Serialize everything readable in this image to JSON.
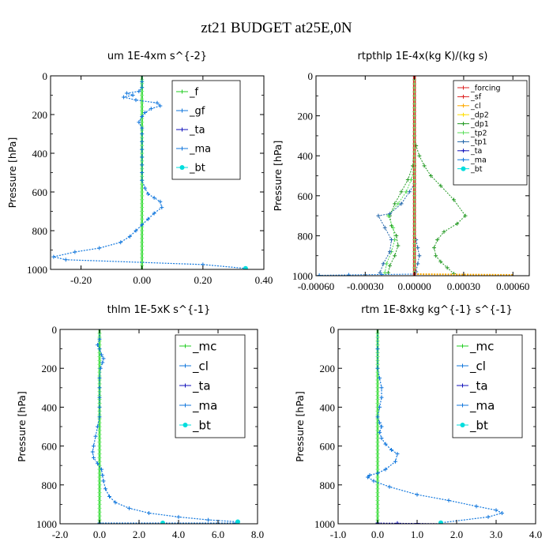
{
  "figure": {
    "title": "zt21  BUDGET at25E,0N",
    "colors": {
      "green": "#22cc22",
      "blue": "#1177dd",
      "navy": "#1111bb",
      "cyan": "#00dddd",
      "red": "#dd2222",
      "orange": "#ffaa00",
      "yellow": "#ffdd00",
      "dark_green": "#229922",
      "light_green": "#55dd55",
      "deep_blue": "#2266aa"
    }
  },
  "chart_data": [
    {
      "type": "line",
      "title": "um   1E-4xm s^{-2}",
      "xlabel": "",
      "ylabel": "Pressure [hPa]",
      "xlim": [
        -0.3,
        0.4
      ],
      "ylim": [
        1000,
        0
      ],
      "x_ticks": [
        -0.2,
        0.0,
        0.2,
        0.4
      ],
      "x_tick_labels": [
        "-0.20",
        "0.00",
        "0.20",
        "0.40"
      ],
      "y_ticks": [
        0,
        200,
        400,
        600,
        800,
        1000
      ],
      "y_tick_labels": [
        "0",
        "200",
        "400",
        "600",
        "800",
        "1000"
      ],
      "legend": {
        "position": "top-right",
        "font_size": 13,
        "entries": [
          {
            "label": "_f",
            "color": "green"
          },
          {
            "label": "_gf",
            "color": "blue"
          },
          {
            "label": "_ta",
            "color": "navy"
          },
          {
            "label": "_ma",
            "color": "blue"
          },
          {
            "label": "_bt",
            "color": "cyan"
          }
        ]
      },
      "series": [
        {
          "color": "green",
          "marker": "plus",
          "zero": true,
          "lw": 2.5
        },
        {
          "color": "blue",
          "marker": "plus",
          "lw": 1.2,
          "x": [
            0.0,
            0.0,
            0.0,
            -0.01,
            -0.05,
            -0.03,
            -0.06,
            -0.02,
            0.05,
            0.06,
            0.03,
            0.01,
            0.0,
            -0.01,
            0.0,
            0.0,
            0.0,
            0.0,
            0.0,
            0.0,
            0.0,
            0.0,
            0.01,
            0.02,
            0.04,
            0.06,
            0.065,
            0.04,
            0.02,
            0.0,
            -0.02,
            -0.04,
            -0.07,
            -0.14,
            -0.22,
            -0.29,
            -0.25,
            0.2,
            0.34
          ],
          "y": [
            0,
            30,
            60,
            80,
            90,
            100,
            110,
            125,
            140,
            155,
            170,
            190,
            210,
            240,
            270,
            300,
            340,
            380,
            420,
            460,
            500,
            540,
            580,
            610,
            630,
            650,
            680,
            710,
            740,
            770,
            800,
            830,
            860,
            890,
            910,
            935,
            950,
            975,
            995
          ]
        },
        {
          "color": "cyan",
          "marker": "dot",
          "lw": 0,
          "x": [
            0.34
          ],
          "y": [
            995
          ]
        }
      ]
    },
    {
      "type": "line",
      "title": "rtpthlp   1E-4x(kg K)/(kg s)",
      "xlabel": "",
      "ylabel": "Pressure [hPa]",
      "xlim": [
        -0.0006,
        0.0007
      ],
      "ylim": [
        1000,
        0
      ],
      "x_ticks": [
        -0.0006,
        -0.0003,
        0.0,
        0.0003,
        0.0006
      ],
      "x_tick_labels": [
        "-0.00060",
        "-0.00030",
        "0.00000",
        "0.00030",
        "0.00060"
      ],
      "y_ticks": [
        0,
        200,
        400,
        600,
        800,
        1000
      ],
      "y_tick_labels": [
        "0",
        "200",
        "400",
        "600",
        "800",
        "1000"
      ],
      "legend": {
        "position": "top-right",
        "font_size": 9.5,
        "entries": [
          {
            "label": "_forcing",
            "color": "red"
          },
          {
            "label": "_sf",
            "color": "red"
          },
          {
            "label": "_cl",
            "color": "orange"
          },
          {
            "label": "_dp2",
            "color": "yellow"
          },
          {
            "label": "_dp1",
            "color": "dark_green"
          },
          {
            "label": "_tp2",
            "color": "light_green"
          },
          {
            "label": "_tp1",
            "color": "deep_blue"
          },
          {
            "label": "_ta",
            "color": "navy"
          },
          {
            "label": "_ma",
            "color": "blue"
          },
          {
            "label": "_bt",
            "color": "cyan"
          }
        ]
      },
      "series": [
        {
          "color": "dark_green",
          "marker": "plus",
          "lw": 1,
          "x": [
            0.0,
            0.0,
            1e-05,
            3e-05,
            6e-05,
            0.0001,
            0.00016,
            0.00024,
            0.00031,
            0.00026,
            0.00018,
            0.00014,
            0.00012,
            0.00013,
            0.00016,
            0.0002,
            0.00024
          ],
          "y": [
            0,
            300,
            350,
            400,
            450,
            500,
            550,
            620,
            700,
            740,
            780,
            820,
            860,
            900,
            930,
            960,
            990
          ]
        },
        {
          "color": "dark_green",
          "marker": "plus",
          "lw": 1,
          "x": [
            0.0,
            -1e-05,
            -4e-05,
            -8e-05,
            -0.00012,
            -0.00015,
            -0.00014,
            -0.00011,
            -0.0001,
            -0.00012,
            -0.00015,
            -0.00016
          ],
          "y": [
            340,
            450,
            520,
            580,
            640,
            700,
            750,
            800,
            850,
            900,
            950,
            985
          ]
        },
        {
          "color": "light_green",
          "marker": "plus",
          "lw": 1,
          "x": [
            0.0,
            -2e-05,
            -5e-05,
            -0.0001,
            -0.00016,
            -0.00013,
            -0.00012,
            -0.00014,
            -0.00017,
            -0.00018
          ],
          "y": [
            450,
            520,
            580,
            640,
            700,
            760,
            820,
            880,
            940,
            985
          ]
        },
        {
          "color": "deep_blue",
          "marker": "plus",
          "lw": 1,
          "x": [
            0.0,
            -3e-05,
            -8e-05,
            -0.00015,
            -0.00022,
            -0.00018,
            -0.00014,
            -0.00015,
            -0.00019,
            -0.00021
          ],
          "y": [
            540,
            580,
            640,
            690,
            700,
            760,
            820,
            880,
            940,
            985
          ]
        },
        {
          "color": "deep_blue",
          "marker": "plus",
          "lw": 1,
          "x": [
            1e-05,
            2e-05,
            3e-05,
            2e-05,
            1e-05
          ],
          "y": [
            820,
            860,
            900,
            940,
            980
          ]
        },
        {
          "color": "orange",
          "marker": "none",
          "lw": 2,
          "x": [
            0.0,
            0.00028,
            0.0006
          ],
          "y": [
            992,
            994,
            996
          ]
        },
        {
          "color": "blue",
          "marker": "plus",
          "lw": 1,
          "x": [
            0.0,
            -0.0002,
            -0.0004,
            -0.00058
          ],
          "y": [
            992,
            994,
            996,
            998
          ]
        },
        {
          "color": "red",
          "marker": "plus",
          "zero": true,
          "lw": 3.5
        }
      ]
    },
    {
      "type": "line",
      "title": "thlm   1E-5xK s^{-1}",
      "xlabel": "",
      "ylabel": "Pressure [hPa]",
      "xlim": [
        -2.0,
        8.0
      ],
      "ylim": [
        1000,
        0
      ],
      "x_ticks": [
        -2.0,
        0.0,
        2.0,
        4.0,
        6.0,
        8.0
      ],
      "x_tick_labels": [
        "-2.0",
        "0.0",
        "2.0",
        "4.0",
        "6.0",
        "8.0"
      ],
      "y_ticks": [
        0,
        200,
        400,
        600,
        800,
        1000
      ],
      "y_tick_labels": [
        "0",
        "200",
        "400",
        "600",
        "800",
        "1000"
      ],
      "legend": {
        "position": "top-right",
        "font_size": 15,
        "entries": [
          {
            "label": "_mc",
            "color": "green"
          },
          {
            "label": "_cl",
            "color": "blue"
          },
          {
            "label": "_ta",
            "color": "navy"
          },
          {
            "label": "_ma",
            "color": "blue"
          },
          {
            "label": "_bt",
            "color": "cyan"
          }
        ]
      },
      "series": [
        {
          "color": "green",
          "marker": "plus",
          "zero": true,
          "lw": 2.5
        },
        {
          "color": "blue",
          "marker": "plus",
          "lw": 1.2,
          "x": [
            0.0,
            0.0,
            -0.1,
            0.0,
            0.1,
            0.2,
            0.15,
            0.05,
            0.0,
            0.0,
            0.0,
            0.0,
            0.0,
            -0.1,
            -0.2,
            -0.3,
            -0.35,
            -0.3,
            -0.1,
            0.1,
            0.15,
            0.2,
            0.3,
            0.5,
            0.8,
            1.5,
            2.5,
            4.0,
            5.5,
            7.0
          ],
          "y": [
            0,
            50,
            80,
            100,
            130,
            150,
            170,
            200,
            250,
            300,
            350,
            400,
            450,
            500,
            550,
            600,
            630,
            660,
            690,
            720,
            750,
            780,
            820,
            860,
            890,
            920,
            945,
            965,
            980,
            990
          ]
        },
        {
          "color": "blue",
          "marker": "plus",
          "lw": 1,
          "x": [
            0.0,
            3.2,
            6.9
          ],
          "y": [
            996,
            996,
            996
          ]
        },
        {
          "color": "cyan",
          "marker": "dot",
          "lw": 0,
          "x": [
            3.2,
            7.0
          ],
          "y": [
            996,
            990
          ]
        }
      ]
    },
    {
      "type": "line",
      "title": "rtm   1E-8xkg kg^{-1} s^{-1}",
      "xlabel": "",
      "ylabel": "Pressure [hPa]",
      "xlim": [
        -1.0,
        4.0
      ],
      "ylim": [
        1000,
        0
      ],
      "x_ticks": [
        -1.0,
        0.0,
        1.0,
        2.0,
        3.0,
        4.0
      ],
      "x_tick_labels": [
        "-1.0",
        "0.0",
        "1.0",
        "2.0",
        "3.0",
        "4.0"
      ],
      "y_ticks": [
        0,
        200,
        400,
        600,
        800,
        1000
      ],
      "y_tick_labels": [
        "0",
        "200",
        "400",
        "600",
        "800",
        "1000"
      ],
      "legend": {
        "position": "top-right",
        "font_size": 15,
        "entries": [
          {
            "label": "_mc",
            "color": "green"
          },
          {
            "label": "_cl",
            "color": "blue"
          },
          {
            "label": "_ta",
            "color": "navy"
          },
          {
            "label": "_ma",
            "color": "blue"
          },
          {
            "label": "_bt",
            "color": "cyan"
          }
        ]
      },
      "series": [
        {
          "color": "green",
          "marker": "plus",
          "zero": true,
          "lw": 2.5
        },
        {
          "color": "blue",
          "marker": "plus",
          "lw": 1.2,
          "x": [
            0.0,
            0.0,
            0.0,
            0.05,
            0.1,
            0.1,
            0.05,
            0.0,
            0.05,
            0.1,
            0.05,
            0.1,
            0.2,
            0.35,
            0.5,
            0.45,
            0.2,
            0.0,
            -0.2,
            -0.25,
            -0.1,
            0.3,
            1.0,
            1.8,
            2.5,
            3.0,
            3.15,
            2.8,
            1.6
          ],
          "y": [
            0,
            100,
            200,
            250,
            300,
            350,
            400,
            450,
            480,
            500,
            530,
            560,
            590,
            620,
            640,
            680,
            720,
            740,
            750,
            760,
            780,
            810,
            850,
            880,
            910,
            930,
            945,
            965,
            995
          ]
        },
        {
          "color": "navy",
          "marker": "plus",
          "lw": 0.8,
          "x": [
            0.0,
            0.5,
            1.0,
            1.6
          ],
          "y": [
            996,
            997,
            998,
            999
          ]
        },
        {
          "color": "cyan",
          "marker": "dot",
          "lw": 0,
          "x": [
            1.6
          ],
          "y": [
            995
          ]
        }
      ]
    }
  ]
}
